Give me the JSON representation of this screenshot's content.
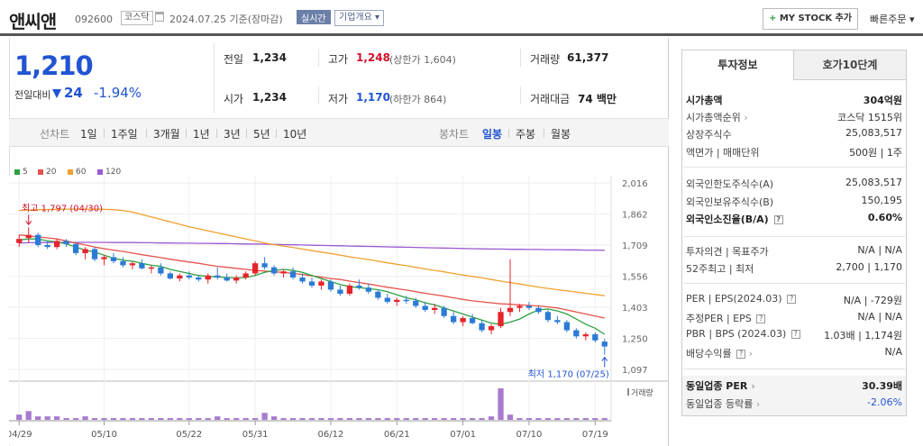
{
  "header": {
    "name": "앤씨앤",
    "code": "092600",
    "market_badge": "코스닥",
    "date": "2024.07.25",
    "basis": "기준(장마감)",
    "realtime": "실시간",
    "corp_info": "기업개요",
    "mystock": "MY STOCK 추가",
    "quick_order": "빠른주문"
  },
  "summary": {
    "price": "1,210",
    "change_label": "전일대비",
    "change": "24",
    "change_pct": "-1.94%",
    "prev_label": "전일",
    "prev": "1,234",
    "high_label": "고가",
    "high": "1,248",
    "upper_limit": "(상한가 1,604)",
    "volume_label": "거래량",
    "volume": "61,377",
    "open_label": "시가",
    "open": "1,234",
    "low_label": "저가",
    "low": "1,170",
    "lower_limit": "(하한가 864)",
    "amount_label": "거래대금",
    "amount": "74 백만"
  },
  "ranges": {
    "line_label": "선차트",
    "line_items": [
      "1일",
      "1주일",
      "3개월",
      "1년",
      "3년",
      "5년",
      "10년"
    ],
    "candle_label": "봉차트",
    "candle_items": [
      "일봉",
      "주봉",
      "월봉"
    ],
    "candle_selected": "일봉"
  },
  "chart_data": {
    "type": "candlestick",
    "legend": [
      "5",
      "20",
      "60",
      "120"
    ],
    "legend_colors": [
      "#2ea043",
      "#e5534b",
      "#f0a030",
      "#9b59d0"
    ],
    "y_ticks": [
      "2,016",
      "1,862",
      "1,709",
      "1,556",
      "1,403",
      "1,250",
      "1,097"
    ],
    "ylim": [
      1097,
      2016
    ],
    "x_ticks": [
      "04/29",
      "05/10",
      "05/22",
      "05/31",
      "06/12",
      "06/21",
      "07/01",
      "07/10",
      "07/19"
    ],
    "max_label": "최고 1,797 (04/30)",
    "min_label": "최저 1,170 (07/25)",
    "volume_label": "거래량",
    "candles": [
      [
        1720,
        1760,
        1700,
        1740
      ],
      [
        1745,
        1797,
        1720,
        1760
      ],
      [
        1760,
        1770,
        1700,
        1710
      ],
      [
        1710,
        1730,
        1690,
        1700
      ],
      [
        1700,
        1740,
        1690,
        1730
      ],
      [
        1730,
        1740,
        1700,
        1715
      ],
      [
        1715,
        1720,
        1660,
        1670
      ],
      [
        1670,
        1700,
        1640,
        1690
      ],
      [
        1690,
        1700,
        1630,
        1640
      ],
      [
        1640,
        1660,
        1610,
        1650
      ],
      [
        1650,
        1670,
        1620,
        1630
      ],
      [
        1630,
        1650,
        1600,
        1610
      ],
      [
        1610,
        1630,
        1590,
        1620
      ],
      [
        1620,
        1640,
        1590,
        1595
      ],
      [
        1595,
        1610,
        1570,
        1600
      ],
      [
        1600,
        1620,
        1560,
        1570
      ],
      [
        1570,
        1580,
        1540,
        1545
      ],
      [
        1545,
        1570,
        1530,
        1560
      ],
      [
        1560,
        1580,
        1540,
        1550
      ],
      [
        1550,
        1560,
        1530,
        1540
      ],
      [
        1540,
        1570,
        1520,
        1560
      ],
      [
        1560,
        1600,
        1540,
        1550
      ],
      [
        1550,
        1570,
        1530,
        1535
      ],
      [
        1535,
        1560,
        1520,
        1550
      ],
      [
        1550,
        1580,
        1540,
        1570
      ],
      [
        1570,
        1630,
        1560,
        1620
      ],
      [
        1620,
        1650,
        1590,
        1600
      ],
      [
        1600,
        1610,
        1560,
        1570
      ],
      [
        1570,
        1590,
        1550,
        1580
      ],
      [
        1580,
        1600,
        1540,
        1550
      ],
      [
        1550,
        1570,
        1520,
        1530
      ],
      [
        1530,
        1550,
        1500,
        1510
      ],
      [
        1510,
        1540,
        1490,
        1530
      ],
      [
        1530,
        1540,
        1480,
        1490
      ],
      [
        1490,
        1510,
        1460,
        1470
      ],
      [
        1470,
        1520,
        1460,
        1510
      ],
      [
        1510,
        1540,
        1490,
        1500
      ],
      [
        1500,
        1520,
        1470,
        1480
      ],
      [
        1480,
        1490,
        1440,
        1450
      ],
      [
        1450,
        1470,
        1420,
        1430
      ],
      [
        1430,
        1450,
        1410,
        1440
      ],
      [
        1440,
        1460,
        1420,
        1435
      ],
      [
        1435,
        1450,
        1400,
        1410
      ],
      [
        1410,
        1430,
        1380,
        1390
      ],
      [
        1390,
        1420,
        1370,
        1400
      ],
      [
        1400,
        1410,
        1350,
        1360
      ],
      [
        1360,
        1380,
        1320,
        1330
      ],
      [
        1330,
        1360,
        1310,
        1350
      ],
      [
        1350,
        1370,
        1320,
        1325
      ],
      [
        1325,
        1340,
        1280,
        1290
      ],
      [
        1290,
        1320,
        1270,
        1310
      ],
      [
        1310,
        1400,
        1300,
        1380
      ],
      [
        1380,
        1640,
        1360,
        1400
      ],
      [
        1400,
        1420,
        1380,
        1410
      ],
      [
        1410,
        1430,
        1390,
        1400
      ],
      [
        1400,
        1410,
        1370,
        1380
      ],
      [
        1380,
        1390,
        1330,
        1340
      ],
      [
        1340,
        1360,
        1320,
        1330
      ],
      [
        1330,
        1340,
        1280,
        1290
      ],
      [
        1290,
        1300,
        1250,
        1260
      ],
      [
        1260,
        1280,
        1240,
        1270
      ],
      [
        1270,
        1280,
        1230,
        1240
      ],
      [
        1234,
        1248,
        1170,
        1210
      ]
    ],
    "volumes": [
      3,
      5,
      2,
      2,
      2,
      1,
      1,
      2,
      1,
      1,
      1,
      1,
      1,
      1,
      1,
      1,
      1,
      1,
      1,
      1,
      1,
      2,
      1,
      1,
      1,
      1,
      4,
      2,
      1,
      1,
      1,
      1,
      1,
      1,
      1,
      1,
      1,
      1,
      1,
      1,
      1,
      1,
      1,
      1,
      1,
      1,
      1,
      1,
      1,
      1,
      2,
      18,
      3,
      1,
      1,
      1,
      1,
      1,
      1,
      1,
      1,
      1,
      1
    ],
    "ma5": [
      1735,
      1740,
      1740,
      1730,
      1725,
      1715,
      1700,
      1685,
      1675,
      1660,
      1645,
      1635,
      1630,
      1620,
      1610,
      1605,
      1590,
      1580,
      1570,
      1560,
      1555,
      1553,
      1550,
      1548,
      1550,
      1560,
      1575,
      1585,
      1590,
      1585,
      1575,
      1560,
      1545,
      1530,
      1515,
      1505,
      1500,
      1495,
      1490,
      1480,
      1465,
      1450,
      1440,
      1425,
      1415,
      1400,
      1385,
      1370,
      1355,
      1340,
      1325,
      1320,
      1330,
      1345,
      1370,
      1390,
      1395,
      1385,
      1370,
      1345,
      1320,
      1300,
      1270
    ],
    "ma20": [
      1760,
      1755,
      1750,
      1745,
      1740,
      1730,
      1720,
      1710,
      1700,
      1692,
      1685,
      1678,
      1670,
      1662,
      1655,
      1648,
      1640,
      1633,
      1626,
      1620,
      1612,
      1605,
      1600,
      1595,
      1590,
      1585,
      1582,
      1578,
      1575,
      1570,
      1565,
      1558,
      1552,
      1545,
      1540,
      1532,
      1525,
      1518,
      1510,
      1502,
      1495,
      1488,
      1480,
      1472,
      1465,
      1458,
      1450,
      1442,
      1435,
      1430,
      1425,
      1420,
      1418,
      1415,
      1412,
      1410,
      1405,
      1400,
      1390,
      1380,
      1370,
      1360,
      1350
    ],
    "ma60": [
      1880,
      1882,
      1884,
      1885,
      1886,
      1887,
      1887,
      1887,
      1887,
      1886,
      1884,
      1880,
      1872,
      1860,
      1848,
      1836,
      1824,
      1812,
      1800,
      1790,
      1780,
      1770,
      1760,
      1750,
      1740,
      1730,
      1720,
      1712,
      1705,
      1698,
      1690,
      1682,
      1675,
      1668,
      1660,
      1652,
      1645,
      1638,
      1630,
      1622,
      1615,
      1608,
      1600,
      1592,
      1585,
      1578,
      1570,
      1562,
      1555,
      1548,
      1540,
      1532,
      1525,
      1518,
      1510,
      1503,
      1496,
      1490,
      1484,
      1478,
      1472,
      1466,
      1460
    ],
    "ma120": [
      1720,
      1721,
      1722,
      1722,
      1723,
      1723,
      1723,
      1723,
      1723,
      1723,
      1722,
      1722,
      1722,
      1721,
      1721,
      1720,
      1720,
      1719,
      1719,
      1718,
      1718,
      1717,
      1717,
      1716,
      1715,
      1715,
      1714,
      1713,
      1712,
      1711,
      1710,
      1709,
      1708,
      1707,
      1706,
      1705,
      1704,
      1703,
      1702,
      1701,
      1700,
      1699,
      1698,
      1697,
      1696,
      1695,
      1694,
      1693,
      1692,
      1691,
      1690,
      1690,
      1689,
      1689,
      1688,
      1688,
      1687,
      1687,
      1686,
      1686,
      1685,
      1685,
      1684
    ]
  },
  "investment": {
    "tab1": "투자정보",
    "tab2": "호가10단계",
    "rows": [
      {
        "k": "시가총액",
        "v": "304억원",
        "bold": true
      },
      {
        "k": "시가총액순위",
        "v": "코스닥 1515위"
      },
      {
        "k": "상장주식수",
        "v": "25,083,517"
      },
      {
        "k": "액면가 | 매매단위",
        "v": "500원 | 1주"
      },
      {
        "k": "외국인한도주식수(A)",
        "v": "25,083,517"
      },
      {
        "k": "외국인보유주식수(B)",
        "v": "150,195"
      },
      {
        "k": "외국인소진율(B/A)",
        "v": "0.60%",
        "bold": true
      },
      {
        "k": "투자의견 | 목표주가",
        "v": "N/A | N/A"
      },
      {
        "k": "52주최고 | 최저",
        "v": "2,700 | 1,170"
      },
      {
        "k": "PER | EPS(2024.03)",
        "v": "N/A | -729원"
      },
      {
        "k": "추정PER | EPS",
        "v": "N/A | N/A"
      },
      {
        "k": "PBR | BPS (2024.03)",
        "v": "1.03배 | 1,174원"
      },
      {
        "k": "배당수익률",
        "v": "N/A"
      },
      {
        "k": "동일업종 PER",
        "v": "30.39배",
        "bold": true
      },
      {
        "k": "동일업종 등락률",
        "v": "-2.06%",
        "blue": true
      }
    ]
  }
}
